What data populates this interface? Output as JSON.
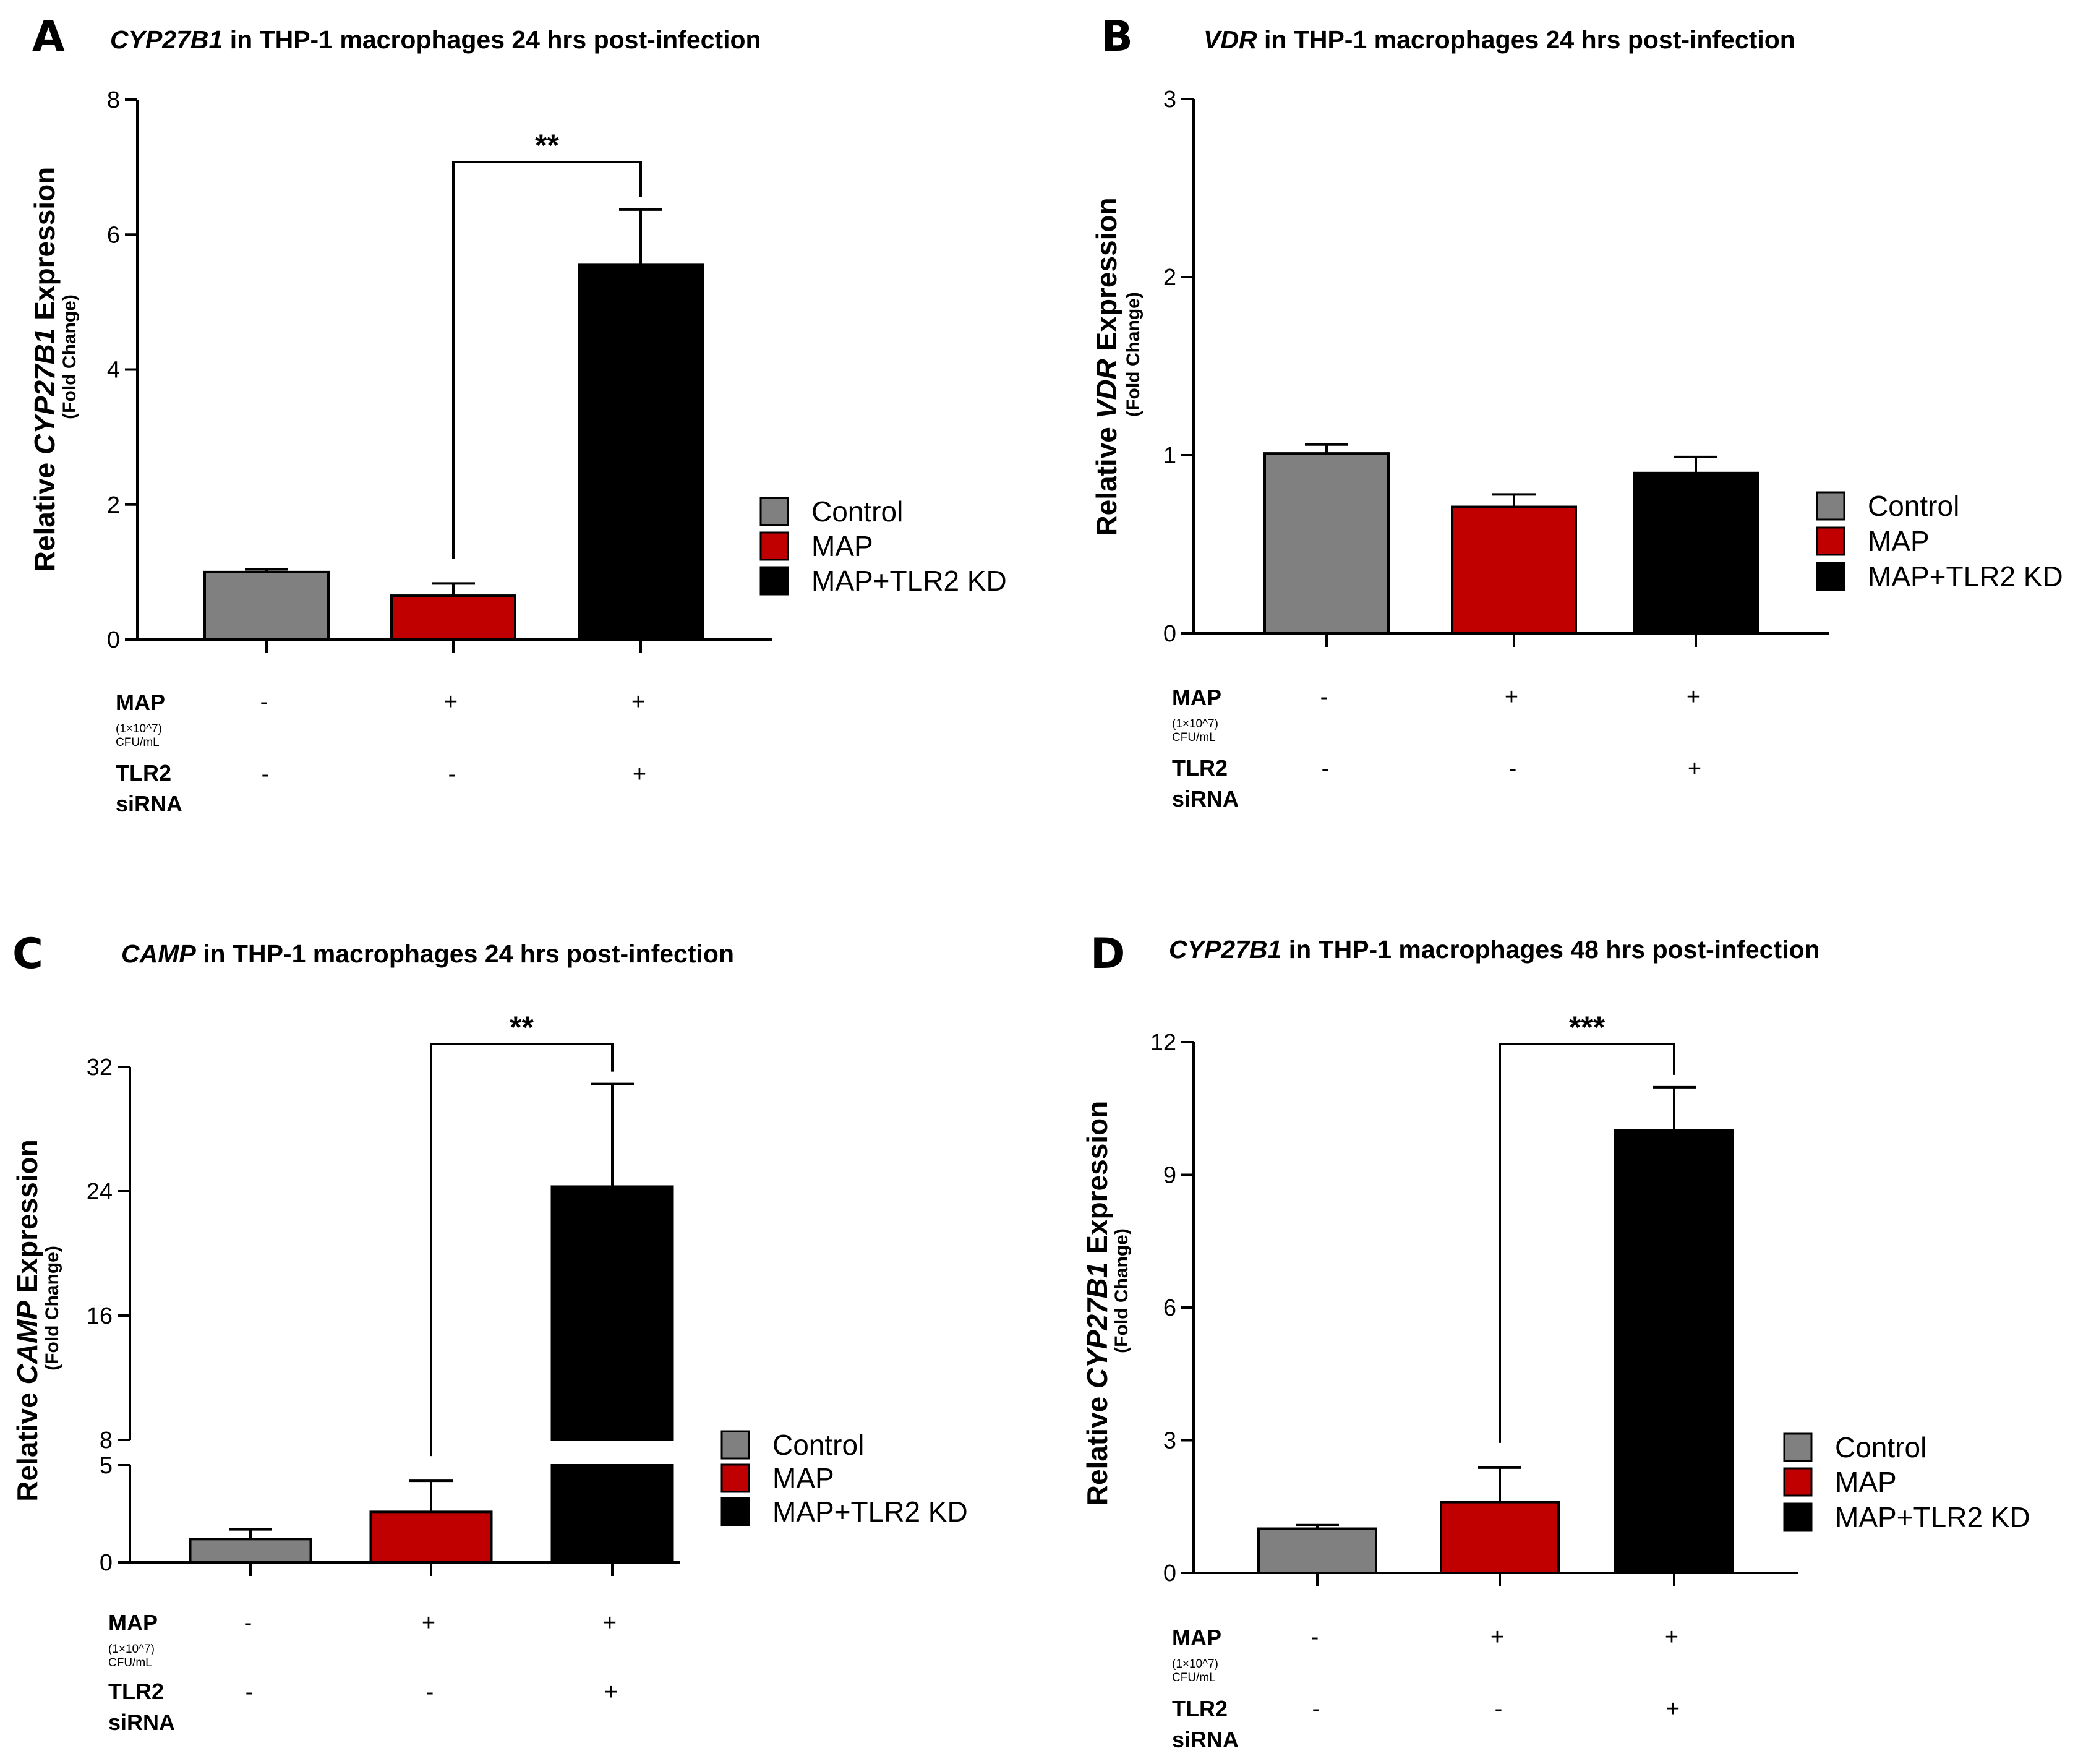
{
  "conditions": {
    "map_label": "MAP",
    "map_conc": "(1×10^7)",
    "map_unit": "CFU/mL",
    "tlr2_label": "TLR2",
    "tlr2_sub": "siRNA",
    "map_signs": [
      "-",
      "+",
      "+"
    ],
    "tlr2_signs": [
      "-",
      "-",
      "+"
    ]
  },
  "legend": [
    {
      "label": "Control",
      "color": "#808080"
    },
    {
      "label": "MAP",
      "color": "#c00000"
    },
    {
      "label": "MAP+TLR2 KD",
      "color": "#000000"
    }
  ],
  "chart_data": [
    {
      "panel": "A",
      "type": "bar",
      "title_gene": "CYP27B1",
      "title_rest": " in THP-1 macrophages 24 hrs post-infection",
      "ylabel_pre": "Relative ",
      "ylabel_gene": "CYP27B1",
      "ylabel_post": " Expression",
      "ylabel_sub": "(Fold Change)",
      "categories": [
        "Control",
        "MAP",
        "MAP+TLR2 KD"
      ],
      "values": [
        1.0,
        0.65,
        5.55
      ],
      "errors": [
        0.04,
        0.18,
        0.82
      ],
      "ylim": [
        0,
        8
      ],
      "yticks": [
        "0",
        "2",
        "4",
        "6",
        "8"
      ],
      "significance": {
        "from": 1,
        "to": 2,
        "label": "**"
      }
    },
    {
      "panel": "B",
      "type": "bar",
      "title_gene": "VDR",
      "title_rest": " in THP-1 macrophages 24 hrs post-infection",
      "ylabel_pre": "Relative ",
      "ylabel_gene": "VDR",
      "ylabel_post": " Expression",
      "ylabel_sub": "(Fold Change)",
      "categories": [
        "Control",
        "MAP",
        "MAP+TLR2 KD"
      ],
      "values": [
        1.01,
        0.71,
        0.9
      ],
      "errors": [
        0.05,
        0.07,
        0.09
      ],
      "ylim": [
        0,
        3
      ],
      "yticks": [
        "0",
        "1",
        "2",
        "3"
      ]
    },
    {
      "panel": "C",
      "type": "bar",
      "title_gene": "CAMP",
      "title_rest": " in THP-1 macrophages 24 hrs post-infection",
      "ylabel_pre": "Relative ",
      "ylabel_gene": "CAMP",
      "ylabel_post": " Expression",
      "ylabel_sub": "(Fold Change)",
      "categories": [
        "Control",
        "MAP",
        "MAP+TLR2 KD"
      ],
      "values": [
        1.2,
        2.6,
        24.3
      ],
      "errors": [
        0.5,
        1.6,
        6.6
      ],
      "ylim": [
        0,
        32
      ],
      "axis_break": [
        5,
        8
      ],
      "yticks": [
        "0",
        "5",
        "8",
        "16",
        "24",
        "32"
      ],
      "significance": {
        "from": 1,
        "to": 2,
        "label": "**"
      }
    },
    {
      "panel": "D",
      "type": "bar",
      "title_gene": "CYP27B1",
      "title_rest": " in THP-1 macrophages 48 hrs post-infection",
      "ylabel_pre": "Relative ",
      "ylabel_gene": "CYP27B1",
      "ylabel_post": " Expression",
      "ylabel_sub": "(Fold Change)",
      "categories": [
        "Control",
        "MAP",
        "MAP+TLR2 KD"
      ],
      "values": [
        1.0,
        1.6,
        10.0
      ],
      "errors": [
        0.08,
        0.78,
        0.98
      ],
      "ylim": [
        0,
        12
      ],
      "yticks": [
        "0",
        "3",
        "6",
        "9",
        "12"
      ],
      "significance": {
        "from": 1,
        "to": 2,
        "label": "***"
      }
    }
  ]
}
